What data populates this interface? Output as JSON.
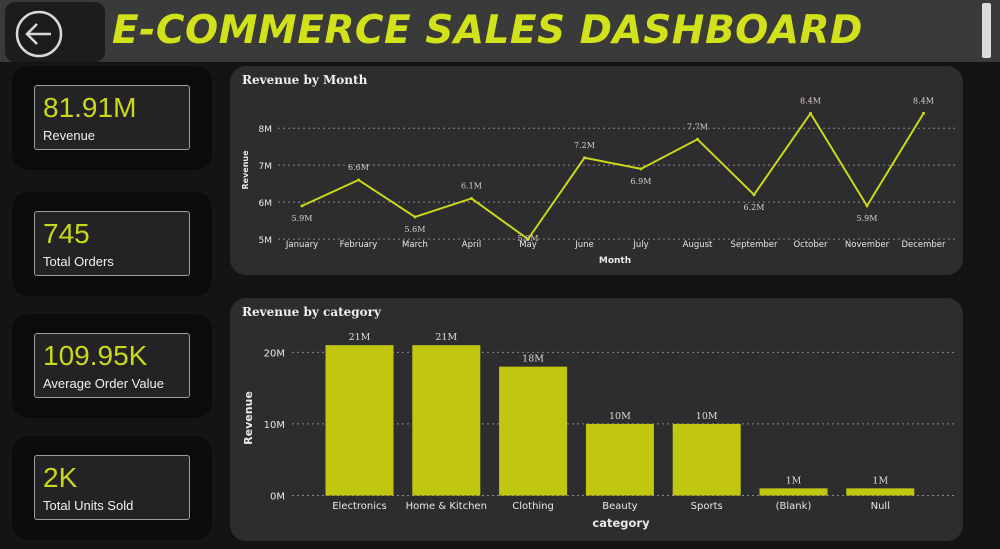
{
  "header": {
    "title": "E-COMMERCE SALES DASHBOARD",
    "back_icon": "arrow-left-circle-icon",
    "accent_color": "#d2e21a"
  },
  "kpis": [
    {
      "value": "81.91M",
      "label": "Revenue"
    },
    {
      "value": "745",
      "label": "Total Orders"
    },
    {
      "value": "109.95K",
      "label": "Average Order Value"
    },
    {
      "value": "2K",
      "label": "Total Units Sold"
    }
  ],
  "chart_data": [
    {
      "type": "line",
      "title": "Revenue by Month",
      "xlabel": "Month",
      "ylabel": "Revenue",
      "categories": [
        "January",
        "February",
        "March",
        "April",
        "May",
        "June",
        "July",
        "August",
        "September",
        "October",
        "November",
        "December"
      ],
      "series": [
        {
          "values": [
            5.9,
            6.6,
            5.6,
            6.1,
            5.0,
            7.2,
            6.9,
            7.7,
            6.2,
            8.4,
            5.9,
            8.4
          ]
        }
      ],
      "data_labels": [
        "5.9M",
        "6.6M",
        "5.6M",
        "6.1M",
        "5.0M",
        "7.2M",
        "6.9M",
        "7.7M",
        "6.2M",
        "8.4M",
        "5.9M",
        "8.4M"
      ],
      "y_ticks": [
        5,
        6,
        7,
        8
      ],
      "y_tick_labels": [
        "5M",
        "6M",
        "7M",
        "8M"
      ],
      "ylim": [
        4.95,
        8.6
      ],
      "grid": true,
      "color": "#c9d81a"
    },
    {
      "type": "bar",
      "title": "Revenue by category",
      "xlabel": "category",
      "ylabel": "Revenue",
      "categories": [
        "Electronics",
        "Home & Kitchen",
        "Clothing",
        "Beauty",
        "Sports",
        "(Blank)",
        "Null"
      ],
      "series": [
        {
          "values": [
            21,
            21,
            18,
            10,
            10,
            1,
            1
          ]
        }
      ],
      "data_labels": [
        "21M",
        "21M",
        "18M",
        "10M",
        "10M",
        "1M",
        "1M"
      ],
      "y_ticks": [
        0,
        10,
        20
      ],
      "y_tick_labels": [
        "0M",
        "10M",
        "20M"
      ],
      "ylim": [
        0,
        22
      ],
      "grid": true,
      "color": "#c0c70e"
    }
  ]
}
